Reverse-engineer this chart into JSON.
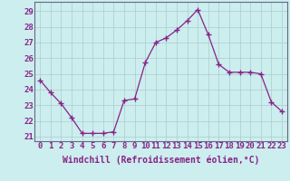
{
  "x": [
    0,
    1,
    2,
    3,
    4,
    5,
    6,
    7,
    8,
    9,
    10,
    11,
    12,
    13,
    14,
    15,
    16,
    17,
    18,
    19,
    20,
    21,
    22,
    23
  ],
  "y": [
    24.6,
    23.8,
    23.1,
    22.2,
    21.2,
    21.2,
    21.2,
    21.3,
    23.3,
    23.4,
    25.7,
    27.0,
    27.3,
    27.8,
    28.4,
    29.1,
    27.5,
    25.6,
    25.1,
    25.1,
    25.1,
    25.0,
    23.2,
    22.6
  ],
  "line_color": "#882288",
  "marker": "+",
  "marker_size": 4,
  "bg_color": "#cceeee",
  "grid_color": "#aacccc",
  "ylabel_ticks": [
    21,
    22,
    23,
    24,
    25,
    26,
    27,
    28,
    29
  ],
  "xlabel": "Windchill (Refroidissement éolien,°C)",
  "ylim": [
    20.7,
    29.6
  ],
  "xlim": [
    -0.5,
    23.5
  ],
  "font_color": "#882288",
  "tick_font_size": 6.5,
  "xlabel_font_size": 7.0,
  "spine_color": "#666688"
}
